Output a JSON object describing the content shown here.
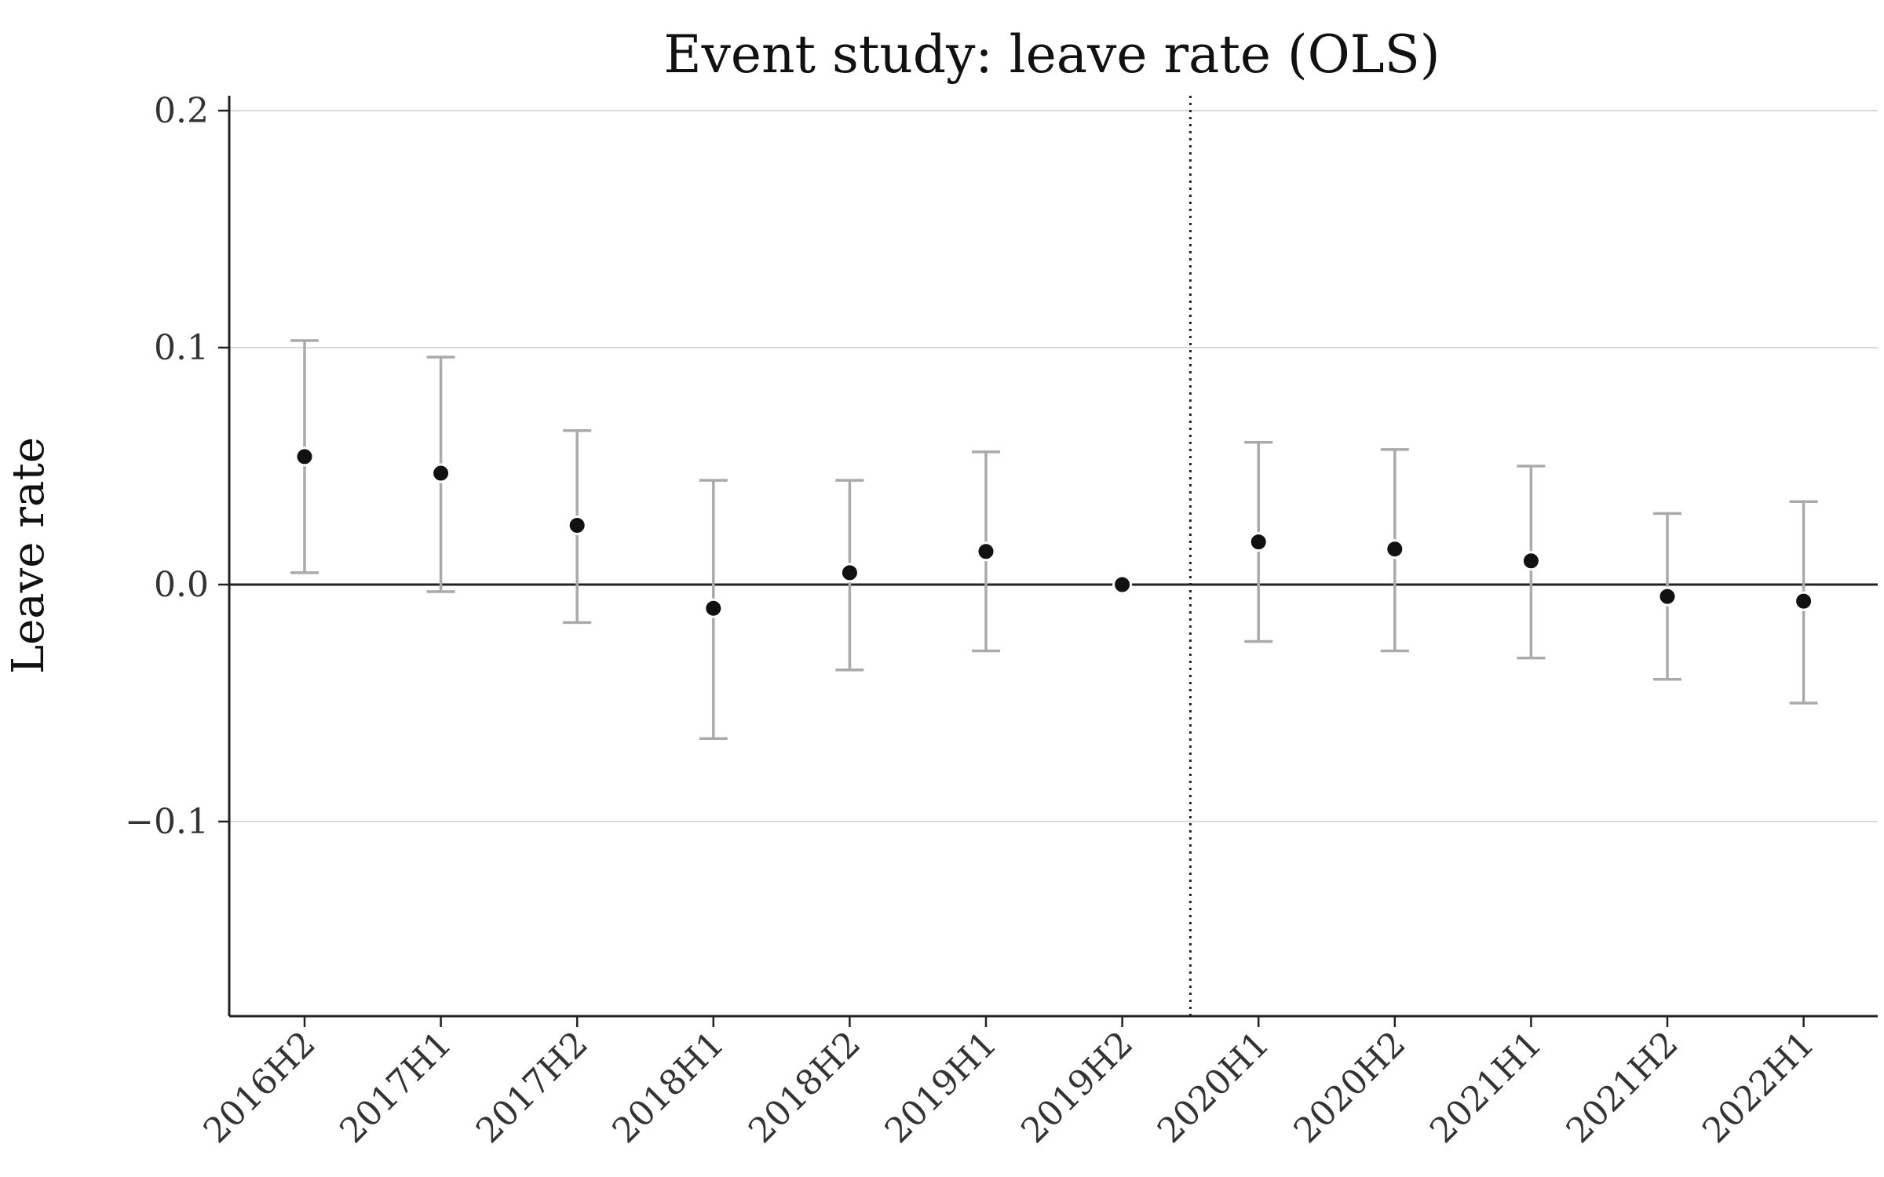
{
  "chart_data": {
    "type": "scatter",
    "title": "Event study: leave rate (OLS)",
    "xlabel": "",
    "ylabel": "Leave rate",
    "ylim": [
      -0.18,
      0.205
    ],
    "yticks": [
      -0.1,
      0.0,
      0.1,
      0.2
    ],
    "ytick_labels": [
      "−0.1",
      "0.0",
      "0.1",
      "0.2"
    ],
    "categories": [
      "2016H2",
      "2017H1",
      "2017H2",
      "2018H1",
      "2018H2",
      "2019H1",
      "2019H2",
      "2020H1",
      "2020H2",
      "2021H1",
      "2021H2",
      "2022H1"
    ],
    "series": [
      {
        "values": [
          0.054,
          0.047,
          0.025,
          -0.01,
          0.005,
          0.014,
          0.0,
          0.018,
          0.015,
          0.01,
          -0.005,
          -0.007
        ],
        "ci_lower": [
          0.005,
          -0.003,
          -0.016,
          -0.065,
          -0.036,
          -0.028,
          0.0,
          -0.024,
          -0.028,
          -0.031,
          -0.04,
          -0.05
        ],
        "ci_upper": [
          0.103,
          0.096,
          0.065,
          0.044,
          0.044,
          0.056,
          0.0,
          0.06,
          0.057,
          0.05,
          0.03,
          0.035
        ]
      }
    ],
    "reference_line_y": 0.0,
    "event_line_after_category": "2019H2",
    "grid": "horizontal",
    "colors": {
      "point": "#111111",
      "error_bar": "#aaaaaa",
      "grid": "#d9d9d9",
      "axis": "#222222",
      "zero_line": "#222222",
      "event_line": "#222222"
    }
  }
}
